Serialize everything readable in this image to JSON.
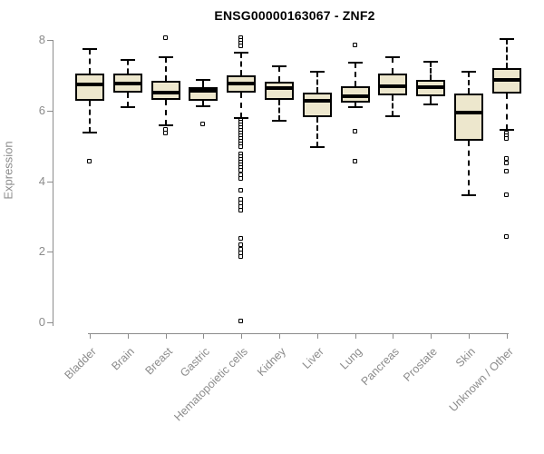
{
  "chart_data": {
    "type": "boxplot",
    "title": "ENSG00000163067 - ZNF2",
    "ylabel": "Expression",
    "ylim": [
      0,
      8
    ],
    "yticks": [
      0,
      2,
      4,
      6,
      8
    ],
    "grid": false,
    "categories": [
      "Bladder",
      "Brain",
      "Breast",
      "Gastric",
      "Hematopoietic cells",
      "Kidney",
      "Liver",
      "Lung",
      "Pancreas",
      "Prostate",
      "Skin",
      "Unknown / Other"
    ],
    "series": [
      {
        "label": "Bladder",
        "whisker_low": 5.38,
        "q1": 6.28,
        "median": 6.73,
        "q3": 7.06,
        "whisker_high": 7.73,
        "outliers": [
          4.55
        ]
      },
      {
        "label": "Brain",
        "whisker_low": 6.1,
        "q1": 6.52,
        "median": 6.76,
        "q3": 7.06,
        "whisker_high": 7.43,
        "outliers": []
      },
      {
        "label": "Breast",
        "whisker_low": 5.58,
        "q1": 6.3,
        "median": 6.52,
        "q3": 6.84,
        "whisker_high": 7.5,
        "outliers": [
          8.05,
          5.45,
          5.35
        ]
      },
      {
        "label": "Gastric",
        "whisker_low": 6.13,
        "q1": 6.28,
        "median": 6.55,
        "q3": 6.67,
        "whisker_high": 6.87,
        "outliers": [
          5.61
        ]
      },
      {
        "label": "Hematopoietic cells",
        "whisker_low": 5.79,
        "q1": 6.5,
        "median": 6.77,
        "q3": 7.0,
        "whisker_high": 7.65,
        "outliers": [
          8.06,
          7.98,
          7.9,
          7.82,
          5.72,
          5.65,
          5.58,
          5.5,
          5.43,
          5.36,
          5.28,
          5.2,
          5.12,
          5.05,
          4.97,
          4.76,
          4.68,
          4.6,
          4.52,
          4.45,
          4.38,
          4.3,
          4.18,
          4.07,
          3.73,
          3.47,
          3.37,
          3.27,
          3.16,
          2.37,
          2.18,
          2.07,
          1.96,
          1.85,
          0.02
        ]
      },
      {
        "label": "Kidney",
        "whisker_low": 5.7,
        "q1": 6.3,
        "median": 6.63,
        "q3": 6.82,
        "whisker_high": 7.25,
        "outliers": []
      },
      {
        "label": "Liver",
        "whisker_low": 4.97,
        "q1": 5.82,
        "median": 6.27,
        "q3": 6.5,
        "whisker_high": 7.1,
        "outliers": []
      },
      {
        "label": "Lung",
        "whisker_low": 6.1,
        "q1": 6.23,
        "median": 6.4,
        "q3": 6.7,
        "whisker_high": 7.35,
        "outliers": [
          7.85,
          5.4,
          4.55
        ]
      },
      {
        "label": "Pancreas",
        "whisker_low": 5.84,
        "q1": 6.42,
        "median": 6.68,
        "q3": 7.05,
        "whisker_high": 7.5,
        "outliers": []
      },
      {
        "label": "Prostate",
        "whisker_low": 6.18,
        "q1": 6.4,
        "median": 6.66,
        "q3": 6.88,
        "whisker_high": 7.38,
        "outliers": []
      },
      {
        "label": "Skin",
        "whisker_low": 3.6,
        "q1": 5.14,
        "median": 5.93,
        "q3": 6.49,
        "whisker_high": 7.1,
        "outliers": []
      },
      {
        "label": "Unknown / Other",
        "whisker_low": 5.46,
        "q1": 6.49,
        "median": 6.88,
        "q3": 7.19,
        "whisker_high": 8.02,
        "outliers": [
          5.35,
          5.28,
          5.2,
          4.62,
          4.5,
          4.27,
          3.6,
          2.42
        ]
      }
    ]
  },
  "colors": {
    "background": "#FFFFFF",
    "box_fill": "#EDE7CD",
    "box_border": "#000000",
    "median": "#000000",
    "whisker": "#000000",
    "outlier_border": "#000000",
    "axis": "#8C8C8C",
    "tick_label": "#8C8C8C",
    "title": "#000000"
  }
}
